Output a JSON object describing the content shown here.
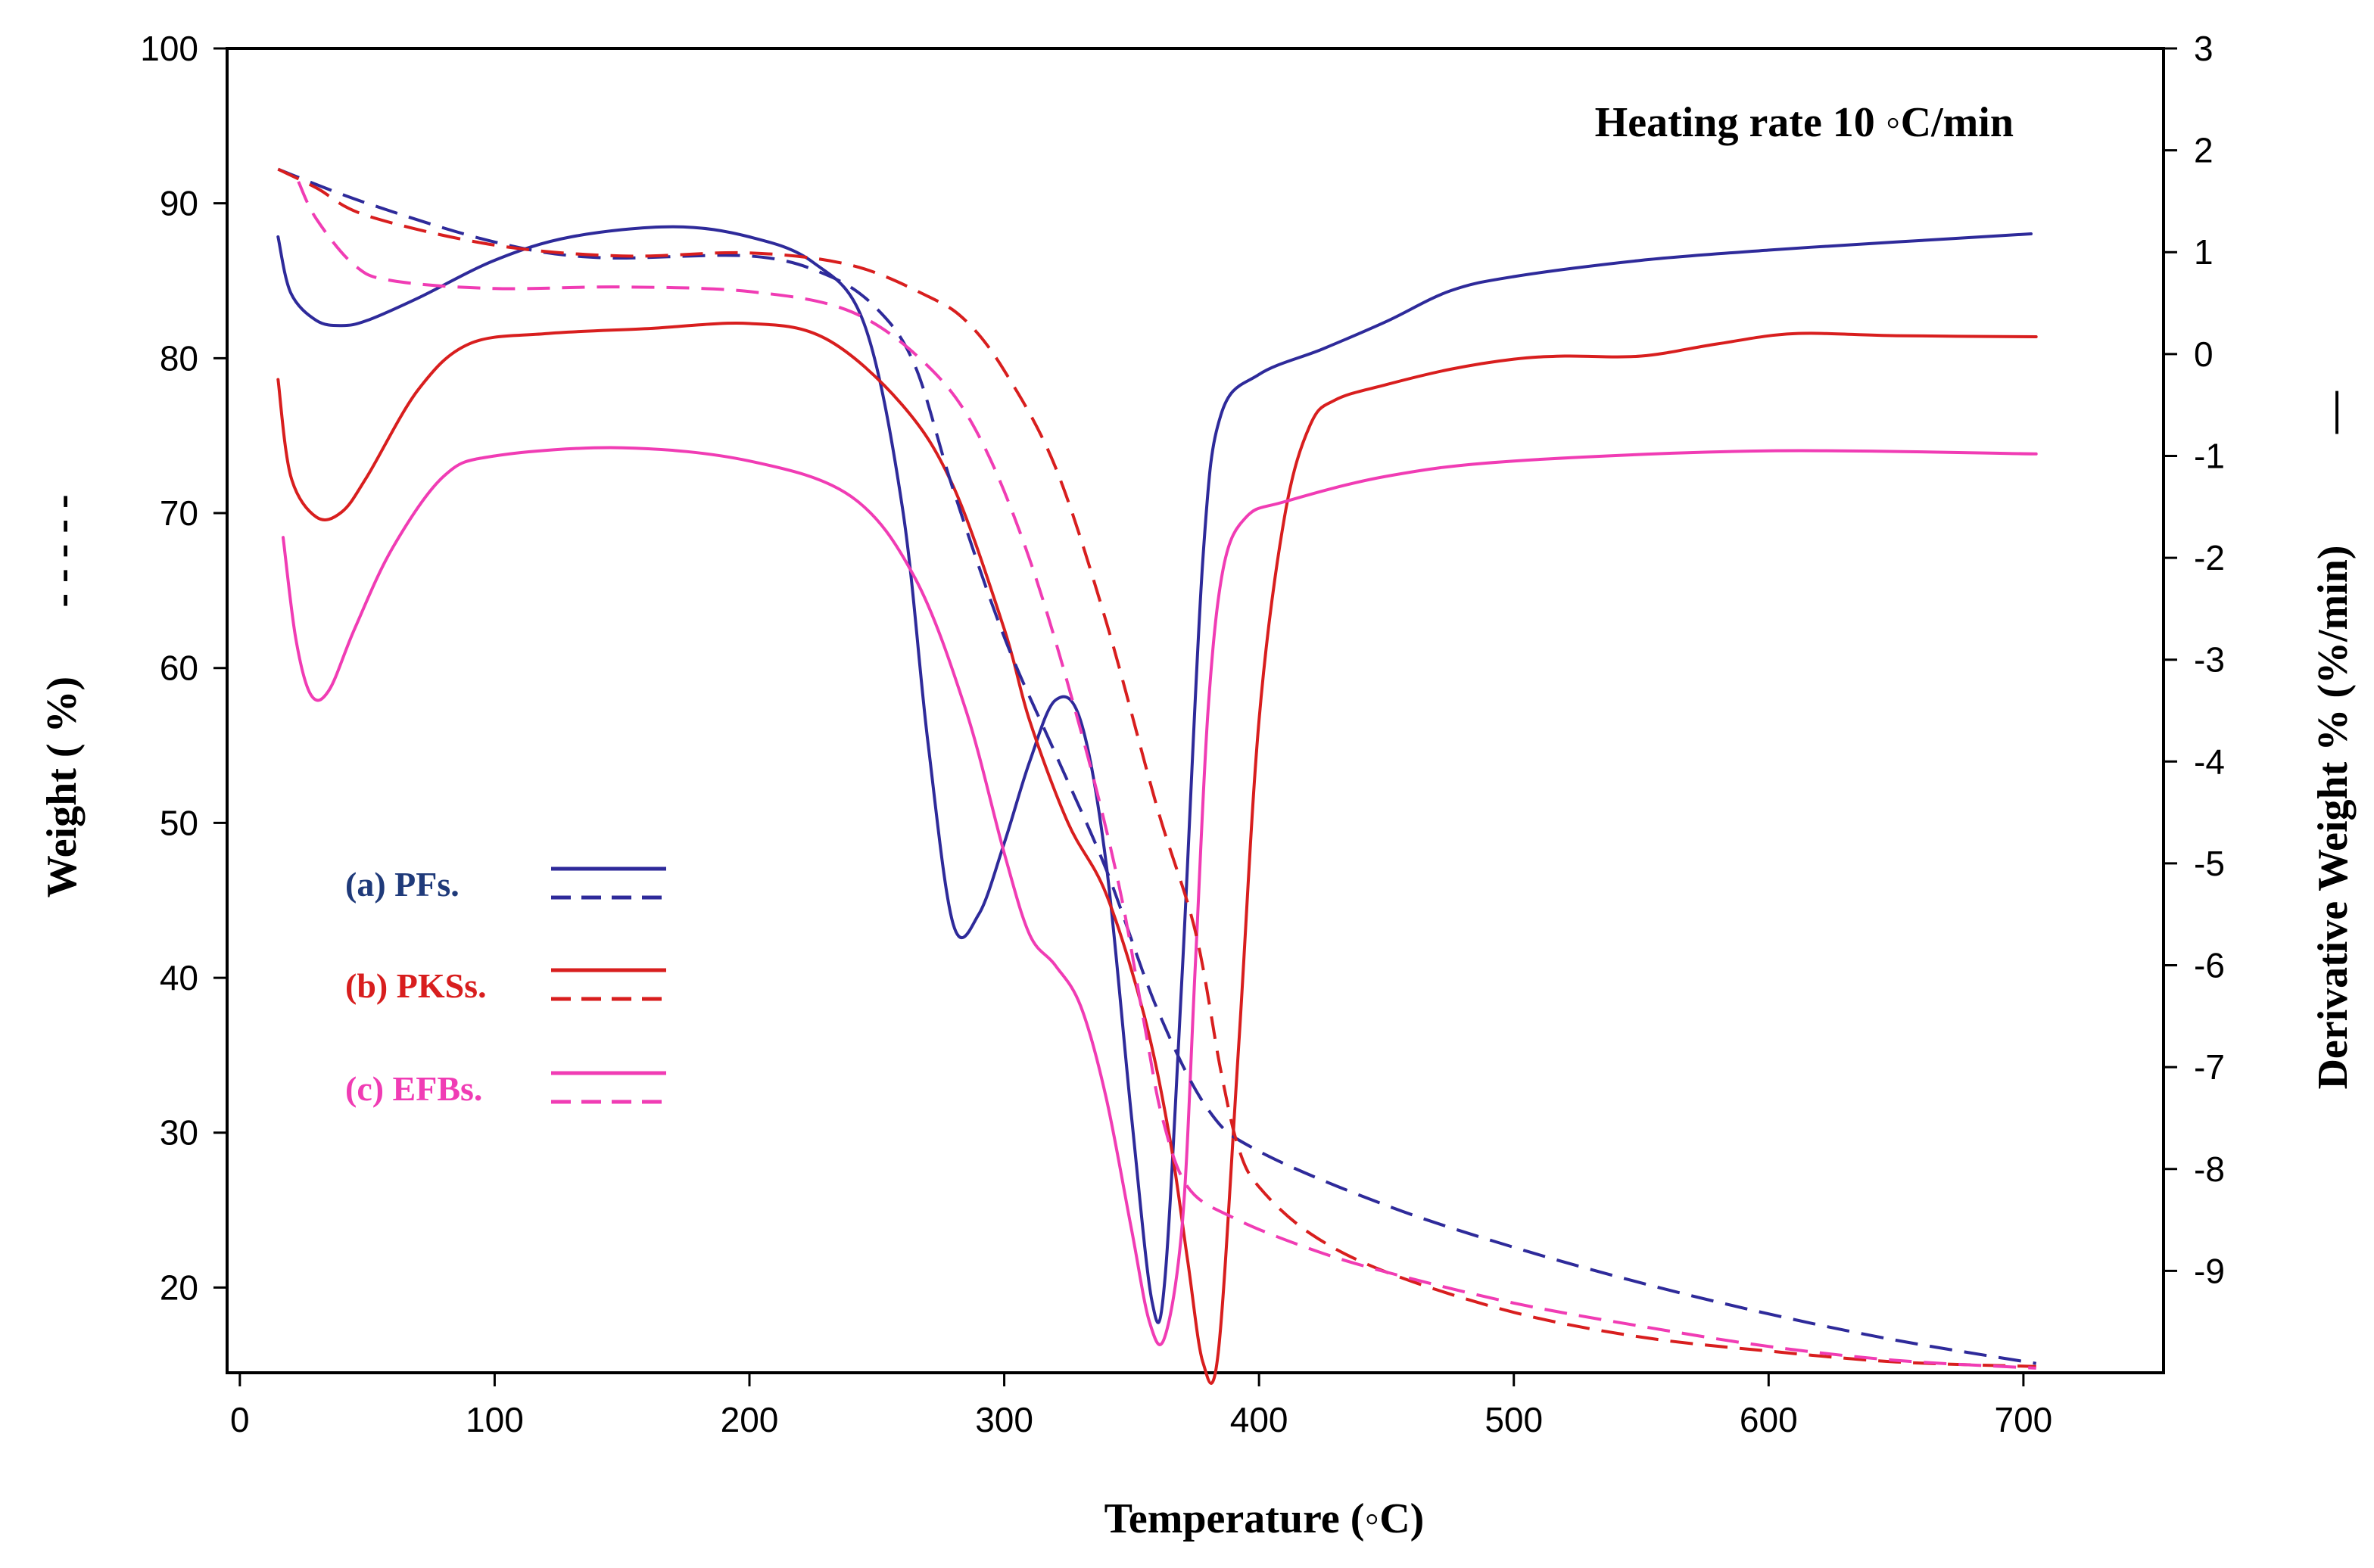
{
  "chart_data": {
    "type": "line",
    "title": "",
    "annotation": "Heating rate 10 ◦C/min",
    "xlabel": "Temperature (◦C)",
    "ylabel_left": "Weight ( %)",
    "ylabel_left_style": "- - - - -",
    "ylabel_right": "Derivative Weight % (%/min)",
    "ylabel_right_style": "—",
    "xlim": [
      -5,
      755
    ],
    "ylim_left": [
      14.5,
      100
    ],
    "ylim_right": [
      -10.0,
      3
    ],
    "x_ticks": [
      "0",
      "100",
      "200",
      "300",
      "400",
      "500",
      "600",
      "700"
    ],
    "y_left_ticks": [
      "20",
      "30",
      "40",
      "50",
      "60",
      "70",
      "80",
      "90",
      "100"
    ],
    "y_right_ticks": [
      "3",
      "2",
      "1",
      "0",
      "-1",
      "-2",
      "-3",
      "-4",
      "-5",
      "-6",
      "-7",
      "-8",
      "-9"
    ],
    "colors": {
      "pf": "#2e2a9a",
      "pks": "#d81e1e",
      "efb": "#f03cb4",
      "legend_pf_text": "#1f3a7a"
    },
    "legend": [
      {
        "label": "(a) PFs.",
        "color_key": "pf"
      },
      {
        "label": "(b) PKSs.",
        "color_key": "pks"
      },
      {
        "label": "(c) EFBs.",
        "color_key": "efb"
      }
    ],
    "series": [
      {
        "name": "PFs. DTG",
        "color_key": "pf",
        "style": "solid",
        "axis": "right",
        "points": [
          [
            15,
            1.15
          ],
          [
            20,
            0.6
          ],
          [
            30,
            0.33
          ],
          [
            40,
            0.28
          ],
          [
            50,
            0.33
          ],
          [
            70,
            0.55
          ],
          [
            100,
            0.92
          ],
          [
            130,
            1.15
          ],
          [
            170,
            1.25
          ],
          [
            200,
            1.15
          ],
          [
            225,
            0.9
          ],
          [
            245,
            0.3
          ],
          [
            260,
            -1.5
          ],
          [
            270,
            -3.8
          ],
          [
            280,
            -5.6
          ],
          [
            290,
            -5.5
          ],
          [
            300,
            -4.8
          ],
          [
            310,
            -4.0
          ],
          [
            320,
            -3.4
          ],
          [
            330,
            -3.6
          ],
          [
            340,
            -5.0
          ],
          [
            350,
            -7.5
          ],
          [
            358,
            -9.3
          ],
          [
            363,
            -9.1
          ],
          [
            370,
            -6.0
          ],
          [
            378,
            -2.0
          ],
          [
            385,
            -0.6
          ],
          [
            400,
            -0.2
          ],
          [
            425,
            0.05
          ],
          [
            450,
            0.32
          ],
          [
            475,
            0.62
          ],
          [
            500,
            0.76
          ],
          [
            550,
            0.92
          ],
          [
            600,
            1.02
          ],
          [
            650,
            1.1
          ],
          [
            703,
            1.18
          ]
        ]
      },
      {
        "name": "PKSs. DTG",
        "color_key": "pks",
        "style": "solid",
        "axis": "right",
        "points": [
          [
            15,
            -0.25
          ],
          [
            20,
            -1.2
          ],
          [
            30,
            -1.6
          ],
          [
            40,
            -1.55
          ],
          [
            50,
            -1.2
          ],
          [
            70,
            -0.35
          ],
          [
            90,
            0.1
          ],
          [
            120,
            0.2
          ],
          [
            160,
            0.25
          ],
          [
            200,
            0.3
          ],
          [
            230,
            0.15
          ],
          [
            260,
            -0.5
          ],
          [
            280,
            -1.3
          ],
          [
            300,
            -2.7
          ],
          [
            310,
            -3.6
          ],
          [
            325,
            -4.6
          ],
          [
            340,
            -5.3
          ],
          [
            355,
            -6.5
          ],
          [
            365,
            -7.7
          ],
          [
            372,
            -8.9
          ],
          [
            378,
            -9.9
          ],
          [
            384,
            -9.8
          ],
          [
            392,
            -6.8
          ],
          [
            400,
            -3.6
          ],
          [
            410,
            -1.6
          ],
          [
            420,
            -0.7
          ],
          [
            430,
            -0.45
          ],
          [
            450,
            -0.3
          ],
          [
            475,
            -0.15
          ],
          [
            500,
            -0.05
          ],
          [
            520,
            -0.02
          ],
          [
            550,
            -0.02
          ],
          [
            580,
            0.1
          ],
          [
            610,
            0.2
          ],
          [
            650,
            0.18
          ],
          [
            705,
            0.17
          ]
        ]
      },
      {
        "name": "EFBs. DTG",
        "color_key": "efb",
        "style": "solid",
        "axis": "right",
        "points": [
          [
            17,
            -1.8
          ],
          [
            22,
            -2.8
          ],
          [
            28,
            -3.35
          ],
          [
            35,
            -3.3
          ],
          [
            45,
            -2.7
          ],
          [
            60,
            -1.9
          ],
          [
            80,
            -1.2
          ],
          [
            100,
            -1.0
          ],
          [
            150,
            -0.92
          ],
          [
            200,
            -1.05
          ],
          [
            240,
            -1.4
          ],
          [
            265,
            -2.2
          ],
          [
            285,
            -3.5
          ],
          [
            300,
            -4.9
          ],
          [
            310,
            -5.7
          ],
          [
            320,
            -6.0
          ],
          [
            330,
            -6.4
          ],
          [
            340,
            -7.3
          ],
          [
            350,
            -8.6
          ],
          [
            357,
            -9.5
          ],
          [
            363,
            -9.65
          ],
          [
            370,
            -8.5
          ],
          [
            375,
            -6.0
          ],
          [
            380,
            -3.5
          ],
          [
            386,
            -2.1
          ],
          [
            395,
            -1.6
          ],
          [
            410,
            -1.45
          ],
          [
            450,
            -1.2
          ],
          [
            500,
            -1.05
          ],
          [
            600,
            -0.95
          ],
          [
            705,
            -0.98
          ]
        ]
      },
      {
        "name": "PFs. TG",
        "color_key": "pf",
        "style": "dashed",
        "axis": "left",
        "points": [
          [
            15,
            92.2
          ],
          [
            50,
            90
          ],
          [
            100,
            87.5
          ],
          [
            140,
            86.5
          ],
          [
            200,
            86.6
          ],
          [
            230,
            85.4
          ],
          [
            250,
            83.2
          ],
          [
            265,
            79.5
          ],
          [
            280,
            71.5
          ],
          [
            300,
            62
          ],
          [
            320,
            54.5
          ],
          [
            340,
            47
          ],
          [
            360,
            38
          ],
          [
            380,
            31.5
          ],
          [
            400,
            28.8
          ],
          [
            450,
            25.3
          ],
          [
            500,
            22.6
          ],
          [
            550,
            20.3
          ],
          [
            600,
            18.3
          ],
          [
            650,
            16.6
          ],
          [
            705,
            15.1
          ]
        ]
      },
      {
        "name": "PKSs. TG",
        "color_key": "pks",
        "style": "dashed",
        "axis": "left",
        "points": [
          [
            15,
            92.2
          ],
          [
            30,
            91
          ],
          [
            50,
            89.2
          ],
          [
            100,
            87.3
          ],
          [
            150,
            86.6
          ],
          [
            200,
            86.8
          ],
          [
            240,
            86
          ],
          [
            270,
            84
          ],
          [
            285,
            82.4
          ],
          [
            300,
            79.2
          ],
          [
            320,
            73
          ],
          [
            340,
            63
          ],
          [
            360,
            51
          ],
          [
            375,
            43
          ],
          [
            385,
            34
          ],
          [
            392,
            29
          ],
          [
            400,
            26.5
          ],
          [
            420,
            23.5
          ],
          [
            450,
            21
          ],
          [
            500,
            18.4
          ],
          [
            550,
            16.8
          ],
          [
            600,
            15.9
          ],
          [
            650,
            15.2
          ],
          [
            705,
            14.9
          ]
        ]
      },
      {
        "name": "EFBs. TG",
        "color_key": "efb",
        "style": "dashed",
        "axis": "left",
        "points": [
          [
            23,
            91.4
          ],
          [
            30,
            89
          ],
          [
            45,
            86
          ],
          [
            60,
            85
          ],
          [
            100,
            84.5
          ],
          [
            150,
            84.6
          ],
          [
            200,
            84.3
          ],
          [
            240,
            83
          ],
          [
            270,
            79.5
          ],
          [
            290,
            75
          ],
          [
            310,
            67
          ],
          [
            330,
            56
          ],
          [
            345,
            46
          ],
          [
            355,
            37
          ],
          [
            362,
            31
          ],
          [
            372,
            26.5
          ],
          [
            390,
            24.5
          ],
          [
            420,
            22.5
          ],
          [
            450,
            21
          ],
          [
            500,
            19
          ],
          [
            550,
            17.5
          ],
          [
            600,
            16.2
          ],
          [
            650,
            15.3
          ],
          [
            705,
            14.8
          ]
        ]
      }
    ]
  }
}
